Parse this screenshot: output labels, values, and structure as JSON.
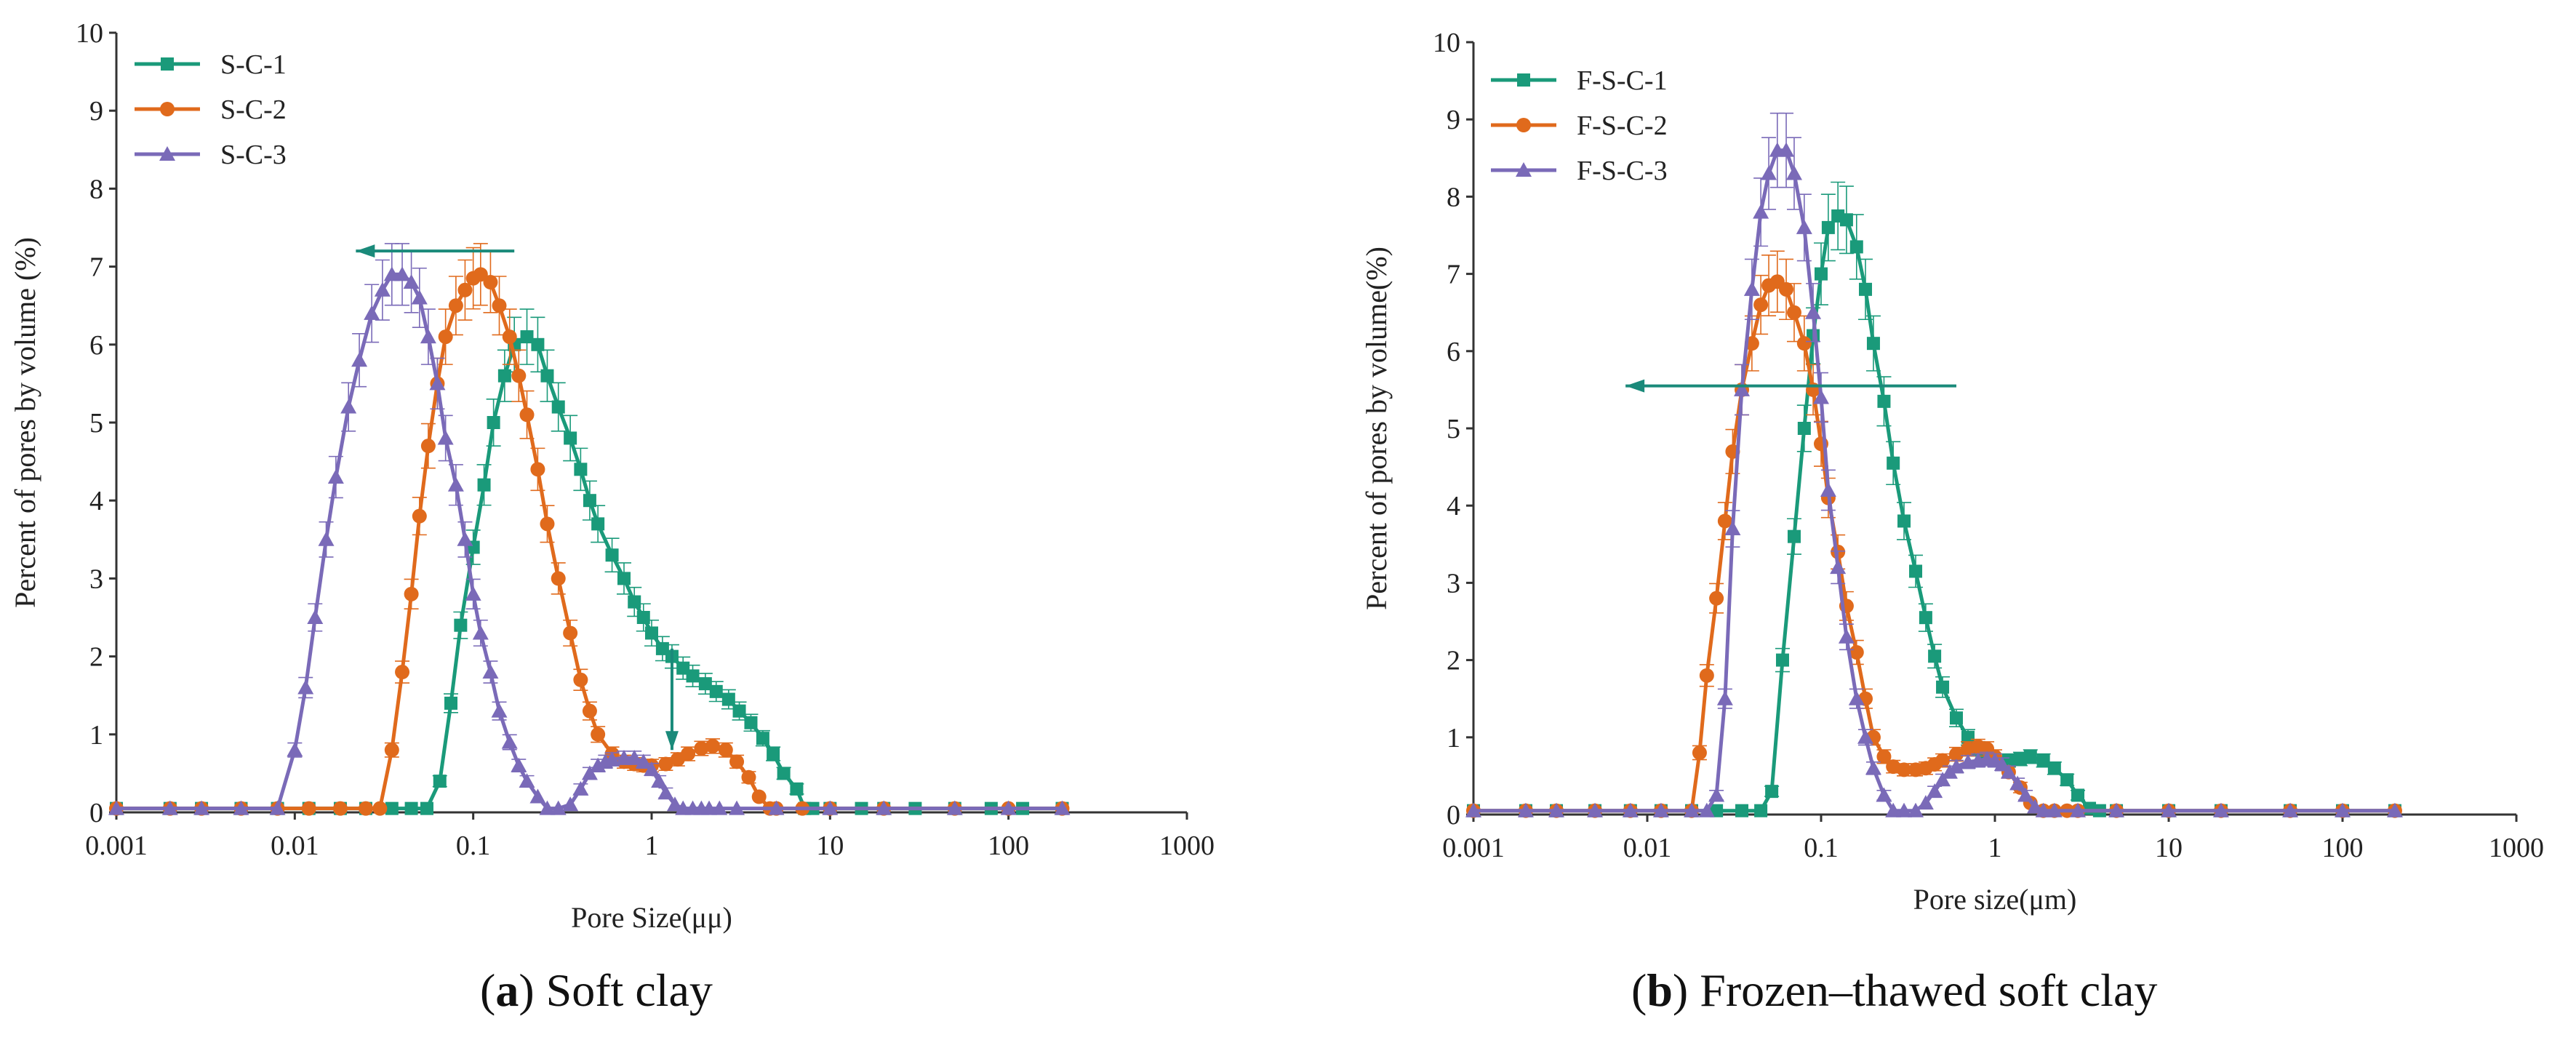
{
  "colors": {
    "s1": "#1a9a7a",
    "s2": "#e06a1c",
    "s3": "#7a6ab8",
    "axis": "#333333",
    "arrow": "#1a8a7a"
  },
  "chart_data": [
    {
      "id": "a",
      "type": "line",
      "xscale": "log",
      "xlim": [
        0.001,
        1000
      ],
      "ylim": [
        0,
        10
      ],
      "xticks": [
        "0.001",
        "0.01",
        "0.1",
        "1",
        "10",
        "100",
        "1000"
      ],
      "yticks": [
        "0",
        "1",
        "2",
        "3",
        "4",
        "5",
        "6",
        "7",
        "8",
        "9",
        "10"
      ],
      "xlabel": "Pore Size(μμ)",
      "ylabel": "Percent of pores by volume (%)",
      "caption_letter": "a",
      "caption_text": "Soft clay",
      "legend": [
        "S-C-1",
        "S-C-2",
        "S-C-3"
      ],
      "annotations": [
        {
          "type": "arrow-horizontal",
          "from": [
            0.17,
            7.2
          ],
          "to": [
            0.022,
            7.2
          ]
        },
        {
          "type": "arrow-vertical",
          "from": [
            1.3,
            2.1
          ],
          "to": [
            1.3,
            0.8
          ]
        }
      ],
      "series": [
        {
          "name": "S-C-1",
          "marker": "square",
          "x": [
            0.001,
            0.002,
            0.003,
            0.005,
            0.008,
            0.012,
            0.018,
            0.025,
            0.035,
            0.045,
            0.055,
            0.065,
            0.075,
            0.085,
            0.1,
            0.115,
            0.13,
            0.15,
            0.17,
            0.2,
            0.23,
            0.26,
            0.3,
            0.35,
            0.4,
            0.45,
            0.5,
            0.6,
            0.7,
            0.8,
            0.9,
            1.0,
            1.15,
            1.3,
            1.5,
            1.7,
            2.0,
            2.3,
            2.7,
            3.1,
            3.6,
            4.2,
            4.8,
            5.5,
            6.5,
            7.2,
            8,
            10,
            15,
            20,
            30,
            50,
            80,
            120,
            200
          ],
          "y": [
            0.05,
            0.05,
            0.05,
            0.05,
            0.05,
            0.05,
            0.05,
            0.05,
            0.05,
            0.05,
            0.05,
            0.4,
            1.4,
            2.4,
            3.4,
            4.2,
            5.0,
            5.6,
            6.0,
            6.1,
            6.0,
            5.6,
            5.2,
            4.8,
            4.4,
            4.0,
            3.7,
            3.3,
            3.0,
            2.7,
            2.5,
            2.3,
            2.1,
            2.0,
            1.85,
            1.75,
            1.65,
            1.55,
            1.45,
            1.3,
            1.15,
            0.95,
            0.75,
            0.5,
            0.3,
            0.05,
            0.05,
            0.05,
            0.05,
            0.05,
            0.05,
            0.05,
            0.05,
            0.05,
            0.05
          ]
        },
        {
          "name": "S-C-2",
          "marker": "circle",
          "x": [
            0.001,
            0.002,
            0.003,
            0.005,
            0.008,
            0.012,
            0.018,
            0.025,
            0.03,
            0.035,
            0.04,
            0.045,
            0.05,
            0.056,
            0.063,
            0.07,
            0.08,
            0.09,
            0.1,
            0.11,
            0.125,
            0.14,
            0.16,
            0.18,
            0.2,
            0.23,
            0.26,
            0.3,
            0.35,
            0.4,
            0.45,
            0.5,
            0.6,
            0.7,
            0.8,
            0.9,
            1.0,
            1.2,
            1.4,
            1.6,
            1.9,
            2.2,
            2.6,
            3.0,
            3.5,
            4.0,
            4.6,
            5,
            7,
            10,
            20,
            50,
            100,
            200
          ],
          "y": [
            0.05,
            0.05,
            0.05,
            0.05,
            0.05,
            0.05,
            0.05,
            0.05,
            0.05,
            0.8,
            1.8,
            2.8,
            3.8,
            4.7,
            5.5,
            6.1,
            6.5,
            6.7,
            6.85,
            6.9,
            6.8,
            6.5,
            6.1,
            5.6,
            5.1,
            4.4,
            3.7,
            3.0,
            2.3,
            1.7,
            1.3,
            1.0,
            0.75,
            0.65,
            0.62,
            0.6,
            0.6,
            0.62,
            0.68,
            0.75,
            0.82,
            0.85,
            0.8,
            0.65,
            0.45,
            0.2,
            0.05,
            0.05,
            0.05,
            0.05,
            0.05,
            0.05,
            0.05,
            0.05
          ]
        },
        {
          "name": "S-C-3",
          "marker": "triangle",
          "x": [
            0.001,
            0.002,
            0.003,
            0.005,
            0.008,
            0.01,
            0.0115,
            0.013,
            0.015,
            0.017,
            0.02,
            0.023,
            0.027,
            0.031,
            0.035,
            0.04,
            0.045,
            0.05,
            0.056,
            0.063,
            0.07,
            0.08,
            0.09,
            0.1,
            0.11,
            0.125,
            0.14,
            0.16,
            0.18,
            0.2,
            0.23,
            0.26,
            0.3,
            0.35,
            0.4,
            0.45,
            0.5,
            0.55,
            0.6,
            0.7,
            0.8,
            0.9,
            1.0,
            1.1,
            1.2,
            1.35,
            1.5,
            1.7,
            1.9,
            2.1,
            2.4,
            3,
            5,
            10,
            20,
            50,
            100,
            200
          ],
          "y": [
            0.05,
            0.05,
            0.05,
            0.05,
            0.05,
            0.8,
            1.6,
            2.5,
            3.5,
            4.3,
            5.2,
            5.8,
            6.4,
            6.7,
            6.9,
            6.9,
            6.8,
            6.6,
            6.1,
            5.5,
            4.8,
            4.2,
            3.5,
            2.8,
            2.3,
            1.8,
            1.3,
            0.9,
            0.6,
            0.4,
            0.2,
            0.05,
            0.05,
            0.1,
            0.3,
            0.5,
            0.6,
            0.65,
            0.68,
            0.7,
            0.7,
            0.65,
            0.55,
            0.4,
            0.25,
            0.1,
            0.05,
            0.05,
            0.05,
            0.05,
            0.05,
            0.05,
            0.05,
            0.05,
            0.05,
            0.05,
            0.05,
            0.05
          ]
        }
      ]
    },
    {
      "id": "b",
      "type": "line",
      "xscale": "log",
      "xlim": [
        0.001,
        1000
      ],
      "ylim": [
        0,
        10
      ],
      "xticks": [
        "0.001",
        "0.01",
        "0.1",
        "1",
        "10",
        "100",
        "1000"
      ],
      "yticks": [
        "0",
        "1",
        "2",
        "3",
        "4",
        "5",
        "6",
        "7",
        "8",
        "9",
        "10"
      ],
      "xlabel": "Pore size(μm)",
      "ylabel": "Percent of pores by volume(%)",
      "caption_letter": "b",
      "caption_text": "Frozen–thawed soft clay",
      "legend": [
        "F-S-C-1",
        "F-S-C-2",
        "F-S-C-3"
      ],
      "annotations": [
        {
          "type": "arrow-horizontal",
          "from": [
            0.6,
            5.55
          ],
          "to": [
            0.0075,
            5.55
          ]
        }
      ],
      "series": [
        {
          "name": "F-S-C-1",
          "marker": "square",
          "x": [
            0.001,
            0.002,
            0.003,
            0.005,
            0.008,
            0.012,
            0.018,
            0.025,
            0.035,
            0.045,
            0.052,
            0.06,
            0.07,
            0.08,
            0.09,
            0.1,
            0.11,
            0.125,
            0.14,
            0.16,
            0.18,
            0.2,
            0.23,
            0.26,
            0.3,
            0.35,
            0.4,
            0.45,
            0.5,
            0.6,
            0.7,
            0.8,
            0.9,
            1.0,
            1.2,
            1.4,
            1.6,
            1.9,
            2.2,
            2.6,
            3.0,
            3.5,
            4.0,
            5,
            10,
            20,
            50,
            100,
            200
          ],
          "y": [
            0.05,
            0.05,
            0.05,
            0.05,
            0.05,
            0.05,
            0.05,
            0.05,
            0.05,
            0.05,
            0.3,
            2.0,
            3.6,
            5.0,
            6.2,
            7.0,
            7.6,
            7.75,
            7.7,
            7.35,
            6.8,
            6.1,
            5.35,
            4.55,
            3.8,
            3.15,
            2.55,
            2.05,
            1.65,
            1.25,
            1.0,
            0.85,
            0.75,
            0.7,
            0.7,
            0.72,
            0.75,
            0.7,
            0.6,
            0.45,
            0.25,
            0.08,
            0.05,
            0.05,
            0.05,
            0.05,
            0.05,
            0.05,
            0.05
          ]
        },
        {
          "name": "F-S-C-2",
          "marker": "circle",
          "x": [
            0.001,
            0.002,
            0.003,
            0.005,
            0.008,
            0.012,
            0.018,
            0.02,
            0.022,
            0.025,
            0.028,
            0.031,
            0.035,
            0.04,
            0.045,
            0.05,
            0.056,
            0.063,
            0.07,
            0.08,
            0.09,
            0.1,
            0.11,
            0.125,
            0.14,
            0.16,
            0.18,
            0.2,
            0.23,
            0.26,
            0.3,
            0.35,
            0.4,
            0.45,
            0.5,
            0.6,
            0.7,
            0.8,
            0.9,
            1.0,
            1.2,
            1.4,
            1.6,
            1.9,
            2.2,
            2.6,
            3,
            5,
            10,
            20,
            50,
            100,
            200
          ],
          "y": [
            0.05,
            0.05,
            0.05,
            0.05,
            0.05,
            0.05,
            0.05,
            0.8,
            1.8,
            2.8,
            3.8,
            4.7,
            5.5,
            6.1,
            6.6,
            6.85,
            6.9,
            6.8,
            6.5,
            6.1,
            5.5,
            4.8,
            4.1,
            3.4,
            2.7,
            2.1,
            1.5,
            1.0,
            0.75,
            0.62,
            0.58,
            0.58,
            0.6,
            0.65,
            0.7,
            0.78,
            0.85,
            0.88,
            0.85,
            0.75,
            0.55,
            0.35,
            0.15,
            0.05,
            0.05,
            0.05,
            0.05,
            0.05,
            0.05,
            0.05,
            0.05,
            0.05,
            0.05
          ]
        },
        {
          "name": "F-S-C-3",
          "marker": "triangle",
          "x": [
            0.001,
            0.002,
            0.003,
            0.005,
            0.008,
            0.012,
            0.018,
            0.022,
            0.025,
            0.028,
            0.031,
            0.035,
            0.04,
            0.045,
            0.05,
            0.056,
            0.063,
            0.07,
            0.08,
            0.09,
            0.1,
            0.11,
            0.125,
            0.14,
            0.16,
            0.18,
            0.2,
            0.23,
            0.26,
            0.3,
            0.35,
            0.4,
            0.45,
            0.5,
            0.55,
            0.6,
            0.7,
            0.8,
            0.9,
            1.0,
            1.1,
            1.2,
            1.35,
            1.5,
            1.7,
            1.9,
            2.2,
            3,
            5,
            10,
            20,
            50,
            100,
            200
          ],
          "y": [
            0.05,
            0.05,
            0.05,
            0.05,
            0.05,
            0.05,
            0.05,
            0.05,
            0.25,
            1.5,
            3.7,
            5.5,
            6.8,
            7.8,
            8.3,
            8.6,
            8.6,
            8.3,
            7.6,
            6.5,
            5.4,
            4.2,
            3.2,
            2.3,
            1.5,
            1.0,
            0.6,
            0.25,
            0.05,
            0.05,
            0.05,
            0.15,
            0.3,
            0.45,
            0.55,
            0.62,
            0.68,
            0.7,
            0.72,
            0.7,
            0.65,
            0.55,
            0.4,
            0.25,
            0.1,
            0.05,
            0.05,
            0.05,
            0.05,
            0.05,
            0.05,
            0.05,
            0.05,
            0.05
          ]
        }
      ]
    }
  ]
}
